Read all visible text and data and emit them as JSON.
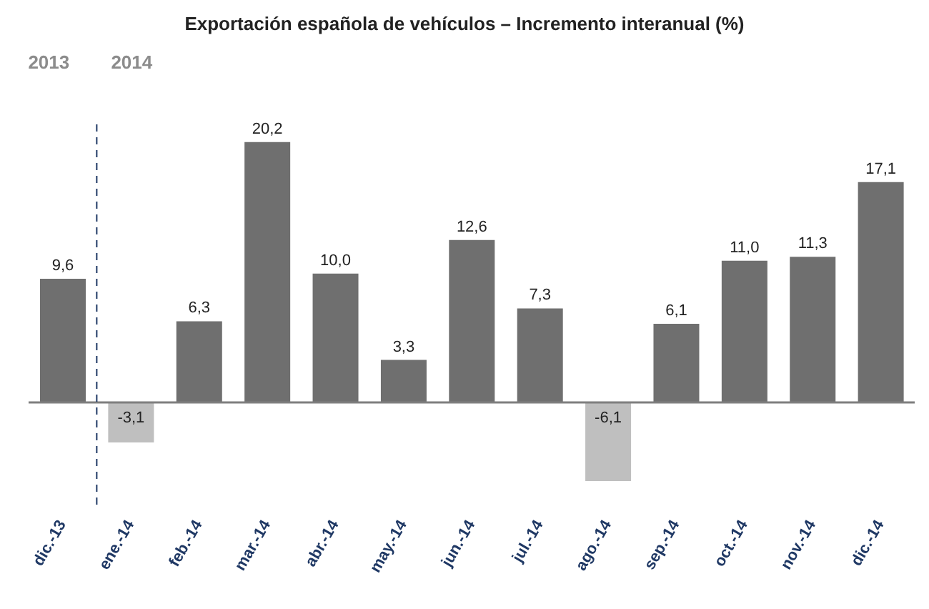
{
  "chart_data": {
    "type": "bar",
    "title": "Exportación española de vehículos – Incremento interanual (%)",
    "categories": [
      "dic.-13",
      "ene.-14",
      "feb.-14",
      "mar.-14",
      "abr.-14",
      "may.-14",
      "jun.-14",
      "jul.-14",
      "ago.-14",
      "sep.-14",
      "oct.-14",
      "nov.-14",
      "dic.-14"
    ],
    "values": [
      9.6,
      -3.1,
      6.3,
      20.2,
      10.0,
      3.3,
      12.6,
      7.3,
      -6.1,
      6.1,
      11.0,
      11.3,
      17.1
    ],
    "value_labels": [
      "9,6",
      "-3,1",
      "6,3",
      "20,2",
      "10,0",
      "3,3",
      "12,6",
      "7,3",
      "-6,1",
      "6,1",
      "11,0",
      "11,3",
      "17,1"
    ],
    "colors": [
      "#6f6f6f",
      "#bfbfbf",
      "#6f6f6f",
      "#6f6f6f",
      "#6f6f6f",
      "#6f6f6f",
      "#6f6f6f",
      "#6f6f6f",
      "#bfbfbf",
      "#6f6f6f",
      "#6f6f6f",
      "#6f6f6f",
      "#6f6f6f"
    ],
    "ref_lines": [
      {
        "axis": "y",
        "value": 0,
        "color": "#7f7f7f"
      },
      {
        "axis": "x",
        "value": "ene.-14",
        "color": "#1f3864",
        "line_style": "dashed"
      }
    ],
    "annotations": [
      "2013",
      "2014"
    ],
    "grid": false,
    "legend": false
  }
}
